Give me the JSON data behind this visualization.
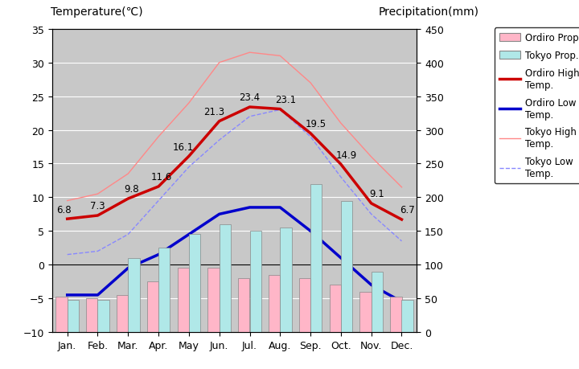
{
  "months": [
    "Jan.",
    "Feb.",
    "Mar.",
    "Apr.",
    "May",
    "Jun.",
    "Jul.",
    "Aug.",
    "Sep.",
    "Oct.",
    "Nov.",
    "Dec."
  ],
  "ordiro_high": [
    6.8,
    7.3,
    9.8,
    11.6,
    16.1,
    21.3,
    23.4,
    23.1,
    19.5,
    14.9,
    9.1,
    6.7
  ],
  "ordiro_low": [
    -4.5,
    -4.5,
    -0.5,
    1.5,
    4.5,
    7.5,
    8.5,
    8.5,
    5.0,
    1.0,
    -3.0,
    -5.5
  ],
  "tokyo_high": [
    9.5,
    10.5,
    13.5,
    19.0,
    24.0,
    30.0,
    31.5,
    31.0,
    27.0,
    21.0,
    16.0,
    11.5
  ],
  "tokyo_low": [
    1.5,
    2.0,
    4.5,
    9.5,
    14.5,
    18.5,
    22.0,
    23.0,
    19.0,
    13.0,
    7.5,
    3.5
  ],
  "ordiro_prcp": [
    52,
    50,
    55,
    75,
    95,
    95,
    80,
    85,
    80,
    70,
    60,
    52
  ],
  "tokyo_prcp": [
    48,
    48,
    110,
    125,
    145,
    160,
    150,
    155,
    220,
    195,
    90,
    48
  ],
  "temp_min": -10,
  "temp_max": 35,
  "prcp_min": 0,
  "prcp_max": 450,
  "ylabel_left": "Temperature(℃)",
  "ylabel_right": "Precipitation(mm)",
  "bg_color": "#c8c8c8",
  "ordiro_high_color": "#cc0000",
  "ordiro_low_color": "#0000cc",
  "tokyo_high_color": "#ff8888",
  "tokyo_low_color": "#8888ff",
  "ordiro_prcp_color": "#ffb6c8",
  "tokyo_prcp_color": "#b0e8e8",
  "tick_fontsize": 9,
  "label_fontsize": 10
}
